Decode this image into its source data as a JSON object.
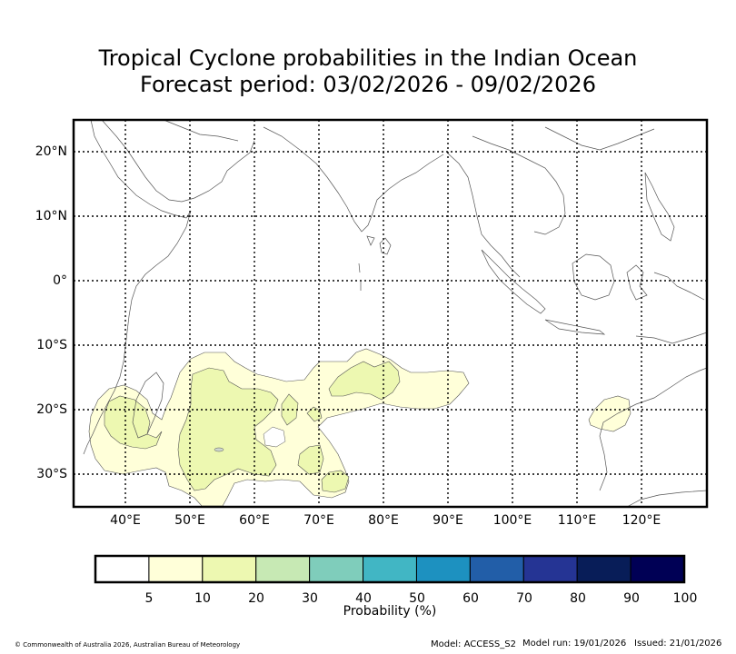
{
  "title": {
    "line1": "Tropical Cyclone probabilities in the Indian Ocean",
    "line2": "Forecast period: 03/02/2026 - 09/02/2026"
  },
  "map": {
    "region": "Indian Ocean",
    "lat_labels": [
      "20°N",
      "10°N",
      "0°",
      "10°S",
      "20°S",
      "30°S"
    ],
    "lon_labels": [
      "40°E",
      "50°E",
      "60°E",
      "70°E",
      "80°E",
      "90°E",
      "100°E",
      "110°E",
      "120°E"
    ],
    "extent": {
      "lon_min": 32,
      "lon_max": 130,
      "lat_min": -35,
      "lat_max": 25
    },
    "grid": "dotted",
    "colors": {
      "land_outline": "#555555",
      "grid": "#000000"
    }
  },
  "probability_areas": [
    {
      "label": "5-10%",
      "color": "#ffffd9",
      "regions": [
        "south-west Indian Ocean 12°S-35°S, 38°E-93°E",
        "north-west Australia 17°S-23°S, 112°E-117°E"
      ]
    },
    {
      "label": "10-20%",
      "color": "#edf8b1",
      "regions": [
        "south-west Indian Ocean 14°S-30°S, 40°E-70°E",
        "central Indian Ocean 13°S-17°S, 74°E-83°E"
      ]
    }
  ],
  "colorbar": {
    "label": "Probability (%)",
    "ticks": [
      "5",
      "10",
      "20",
      "30",
      "40",
      "50",
      "60",
      "70",
      "80",
      "90",
      "100"
    ],
    "colors": [
      "#ffffff",
      "#ffffd9",
      "#edf8b1",
      "#c7e9b4",
      "#7fcdbb",
      "#41b6c4",
      "#1d91c0",
      "#225ea8",
      "#253494",
      "#081d58",
      "#000055"
    ]
  },
  "footer": {
    "copyright": "© Commonwealth of Australia 2026, Australian Bureau of Meteorology",
    "model": "Model: ACCESS_S2",
    "model_run": "Model run: 19/01/2026",
    "issued": "Issued: 21/01/2026"
  }
}
